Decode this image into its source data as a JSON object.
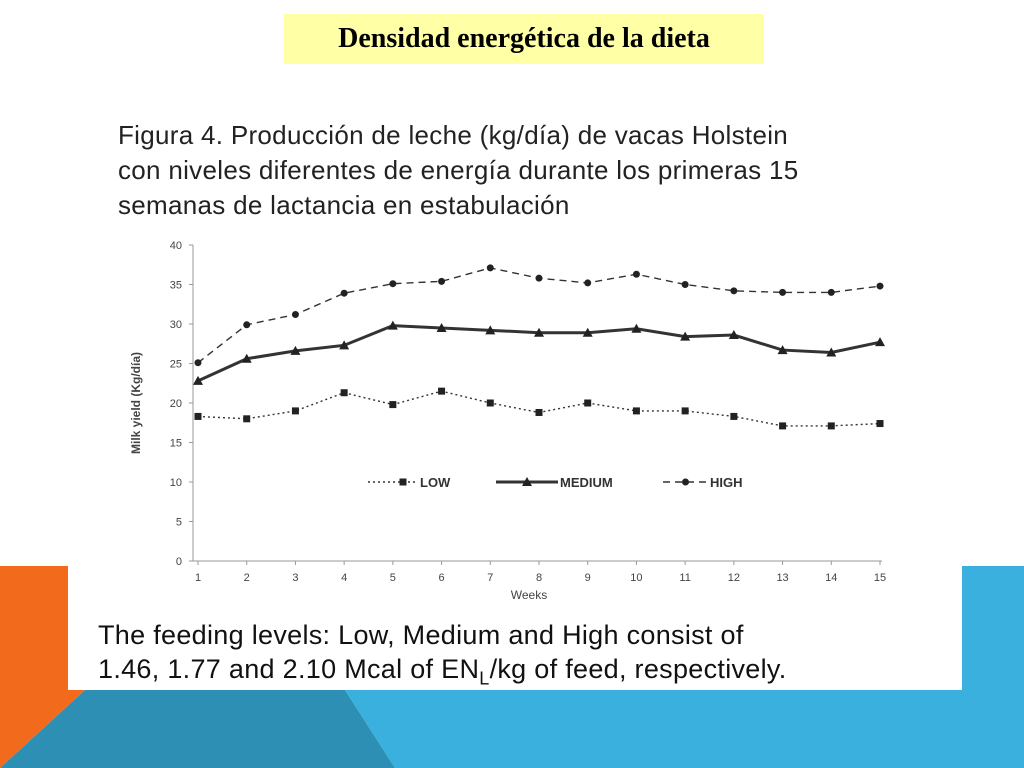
{
  "slide": {
    "title": "Densidad energética de la dieta",
    "colors": {
      "orange": "#f26b1d",
      "teal": "#2e8fb5",
      "light_blue": "#39b0de",
      "title_bg": "#ffffa6"
    }
  },
  "figure": {
    "caption_lines": [
      "Figura 4. Producción de leche (kg/día) de vacas Holstein",
      "con niveles diferentes de energía durante los primeras 15",
      "semanas de lactancia en estabulación"
    ],
    "footer_line1": "The feeding levels: Low, Medium and High consist of",
    "footer_line2_before": "1.46, 1.77 and 2.10 Mcal of EN",
    "footer_sub": "L",
    "footer_line2_after": "/kg of feed, respectively."
  },
  "chart_data": {
    "type": "line",
    "xlabel": "Weeks",
    "ylabel": "Milk yield (Kg/día)",
    "x": [
      1,
      2,
      3,
      4,
      5,
      6,
      7,
      8,
      9,
      10,
      11,
      12,
      13,
      14,
      15
    ],
    "ylim": [
      0,
      40
    ],
    "yticks": [
      0,
      5,
      10,
      15,
      20,
      25,
      30,
      35,
      40
    ],
    "grid": false,
    "legend_position": "middle",
    "series": [
      {
        "name": "LOW",
        "marker": "square",
        "line": "dotted",
        "values": [
          18.3,
          18.0,
          19.0,
          21.3,
          19.8,
          21.5,
          20.0,
          18.8,
          20.0,
          19.0,
          19.0,
          18.3,
          17.1,
          17.1,
          17.4
        ]
      },
      {
        "name": "MEDIUM",
        "marker": "triangle",
        "line": "solid",
        "values": [
          22.8,
          25.6,
          26.6,
          27.3,
          29.8,
          29.5,
          29.2,
          28.9,
          28.9,
          29.4,
          28.4,
          28.6,
          26.7,
          26.4,
          27.7
        ]
      },
      {
        "name": "HIGH",
        "marker": "circle",
        "line": "dashed",
        "values": [
          25.1,
          29.9,
          31.2,
          33.9,
          35.1,
          35.4,
          37.1,
          35.8,
          35.2,
          36.3,
          35.0,
          34.2,
          34.0,
          34.0,
          34.8
        ]
      }
    ]
  }
}
